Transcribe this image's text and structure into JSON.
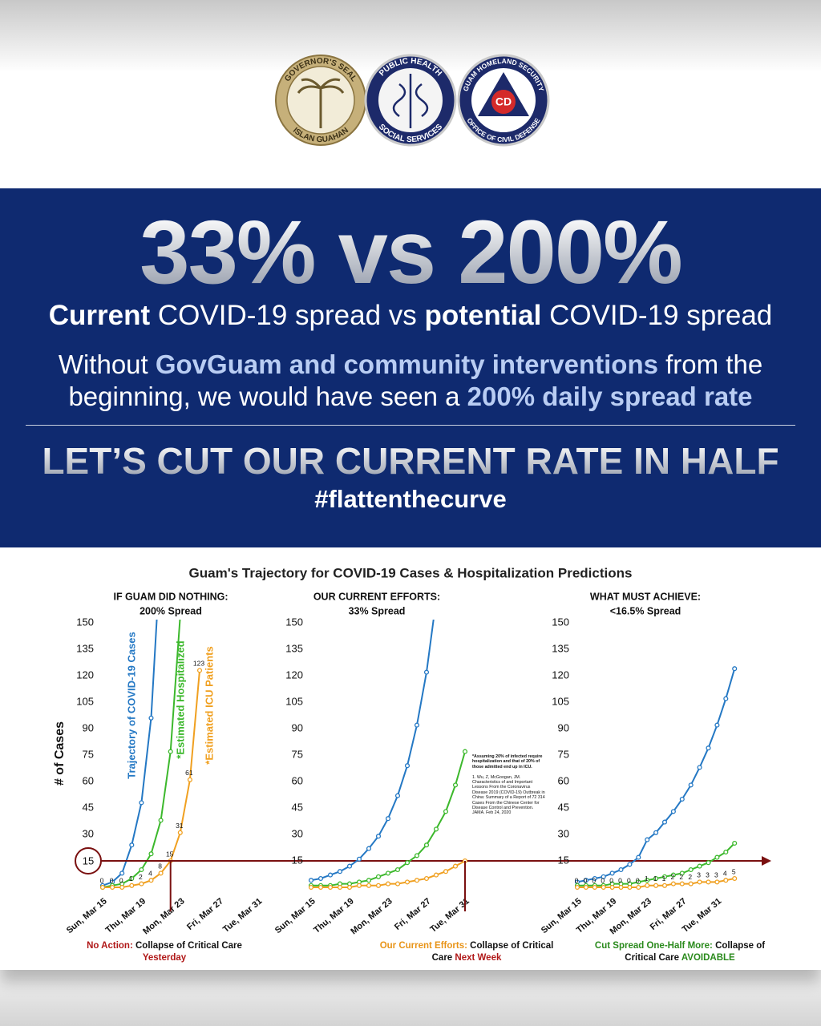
{
  "logos": [
    {
      "top": "GOVERNOR'S SEAL",
      "bottom": "ISLAN GUAHAN"
    },
    {
      "top": "PUBLIC HEALTH",
      "bottom": "SOCIAL SERVICES"
    },
    {
      "top": "GUAM HOMELAND SECURITY",
      "bottom": "OFFICE OF CIVIL DEFENSE",
      "center": "CD"
    }
  ],
  "banner": {
    "headline": "33% vs 200%",
    "subhead": [
      "Current",
      "COVID-19 spread vs",
      "potential",
      "COVID-19 spread"
    ],
    "paragraph": [
      "Without",
      "GovGuam and community interventions",
      "from the beginning, we would have seen a",
      "200% daily spread rate"
    ],
    "call_to_action": "LET’S CUT OUR CURRENT RATE IN HALF",
    "hashtag": "#flattenthecurve"
  },
  "figure_title": "Guam's Trajectory for COVID-19 Cases & Hospitalization Predictions",
  "chart_data": [
    {
      "type": "line",
      "title": "IF GUAM DID NOTHING:",
      "subtitle": "200% Spread",
      "ylabel": "# of Cases",
      "categories": [
        "Sun, Mar 15",
        null,
        null,
        null,
        "Thu, Mar 19",
        null,
        null,
        null,
        "Mon, Mar 23",
        null,
        null,
        null,
        "Fri, Mar 27",
        null,
        null,
        null,
        "Tue, Mar 31",
        null,
        null
      ],
      "series": [
        {
          "name": "Trajectory of COVID-19 Cases",
          "color": "#2478c4",
          "values": [
            1,
            3,
            8,
            24,
            48,
            96,
            192,
            null,
            null,
            null,
            null,
            null,
            null,
            null,
            null,
            null,
            null,
            null,
            null
          ]
        },
        {
          "name": "*Estimated Hospitalized",
          "color": "#3cb82c",
          "values": [
            0,
            1,
            2,
            5,
            10,
            19,
            38,
            77,
            154,
            null,
            null,
            null,
            null,
            null,
            null,
            null,
            null,
            null,
            null
          ]
        },
        {
          "name": "*Estimated ICU Patients",
          "color": "#f0a020",
          "data_labels": true,
          "values": [
            0,
            0,
            0,
            1,
            2,
            4,
            8,
            15,
            31,
            61,
            123,
            null,
            null,
            null,
            null,
            null,
            null,
            null,
            null
          ]
        }
      ],
      "ylim": [
        0,
        150
      ],
      "yticks": [
        30,
        45,
        60,
        75,
        90,
        105,
        120,
        135,
        150
      ],
      "threshold": 15,
      "caption": {
        "lead": "No Action:",
        "text": "Collapse of Critical Care",
        "emphasis": "Yesterday"
      }
    },
    {
      "type": "line",
      "title": "OUR CURRENT EFFORTS:",
      "subtitle": "33% Spread",
      "categories": [
        "Sun, Mar 15",
        null,
        null,
        null,
        "Thu, Mar 19",
        null,
        null,
        null,
        "Mon, Mar 23",
        null,
        null,
        null,
        "Fri, Mar 27",
        null,
        null,
        null,
        "Tue, Mar 31",
        null,
        null
      ],
      "series": [
        {
          "color": "#2478c4",
          "values": [
            4,
            5,
            7,
            9,
            12,
            16,
            22,
            29,
            39,
            52,
            69,
            92,
            122,
            163,
            null,
            null,
            null,
            null,
            null
          ]
        },
        {
          "color": "#3cb82c",
          "values": [
            1,
            1,
            1,
            2,
            2,
            3,
            4,
            6,
            8,
            10,
            14,
            18,
            24,
            33,
            43,
            58,
            77,
            null,
            null
          ]
        },
        {
          "color": "#f0a020",
          "values": [
            0,
            0,
            0,
            0,
            0,
            1,
            1,
            1,
            2,
            2,
            3,
            4,
            5,
            7,
            9,
            12,
            15,
            null,
            null
          ]
        }
      ],
      "ylim": [
        0,
        150
      ],
      "yticks": [
        15,
        30,
        45,
        60,
        75,
        90,
        105,
        120,
        135,
        150
      ],
      "threshold": 15,
      "footnote": "*Assuming 20% of infected require hospitalization and that of 20% of those admitted end up in ICU.",
      "reference": "1. Wu, Z, McGoogan, JM. Characteristics of and Important Lessons From the Coronavirus Disease 2019 (COVID-19) Outbreak in China: Summary of a Report of 72 314 Cases From the Chinese Center for Disease Control and Prevention. JAMA. Feb 24, 2020",
      "caption": {
        "lead": "Our Current Efforts:",
        "text": "Collapse of Critical Care",
        "emphasis": "Next Week"
      }
    },
    {
      "type": "line",
      "title": "WHAT MUST ACHIEVE:",
      "subtitle": "<16.5% Spread",
      "categories": [
        "Sun, Mar 15",
        null,
        null,
        null,
        "Thu, Mar 19",
        null,
        null,
        null,
        "Mon, Mar 23",
        null,
        null,
        null,
        "Fri, Mar 27",
        null,
        null,
        null,
        "Tue, Mar 31",
        null,
        null
      ],
      "series": [
        {
          "color": "#2478c4",
          "values": [
            3,
            4,
            5,
            6,
            8,
            10,
            13,
            17,
            27,
            31,
            37,
            43,
            50,
            58,
            68,
            79,
            92,
            107,
            124
          ]
        },
        {
          "color": "#3cb82c",
          "values": [
            1,
            1,
            1,
            1,
            2,
            2,
            2,
            3,
            4,
            5,
            6,
            7,
            8,
            10,
            12,
            14,
            17,
            20,
            25
          ]
        },
        {
          "color": "#f0a020",
          "data_labels": true,
          "values": [
            0,
            0,
            0,
            0,
            0,
            0,
            0,
            0,
            1,
            1,
            1,
            2,
            2,
            2,
            3,
            3,
            3,
            4,
            5
          ]
        }
      ],
      "ylim": [
        0,
        150
      ],
      "yticks": [
        15,
        30,
        45,
        60,
        75,
        90,
        105,
        120,
        135,
        150
      ],
      "threshold": 15,
      "caption": {
        "lead": "Cut Spread One-Half More:",
        "text": "Collapse of Critical Care",
        "emphasis": "AVOIDABLE"
      }
    }
  ]
}
